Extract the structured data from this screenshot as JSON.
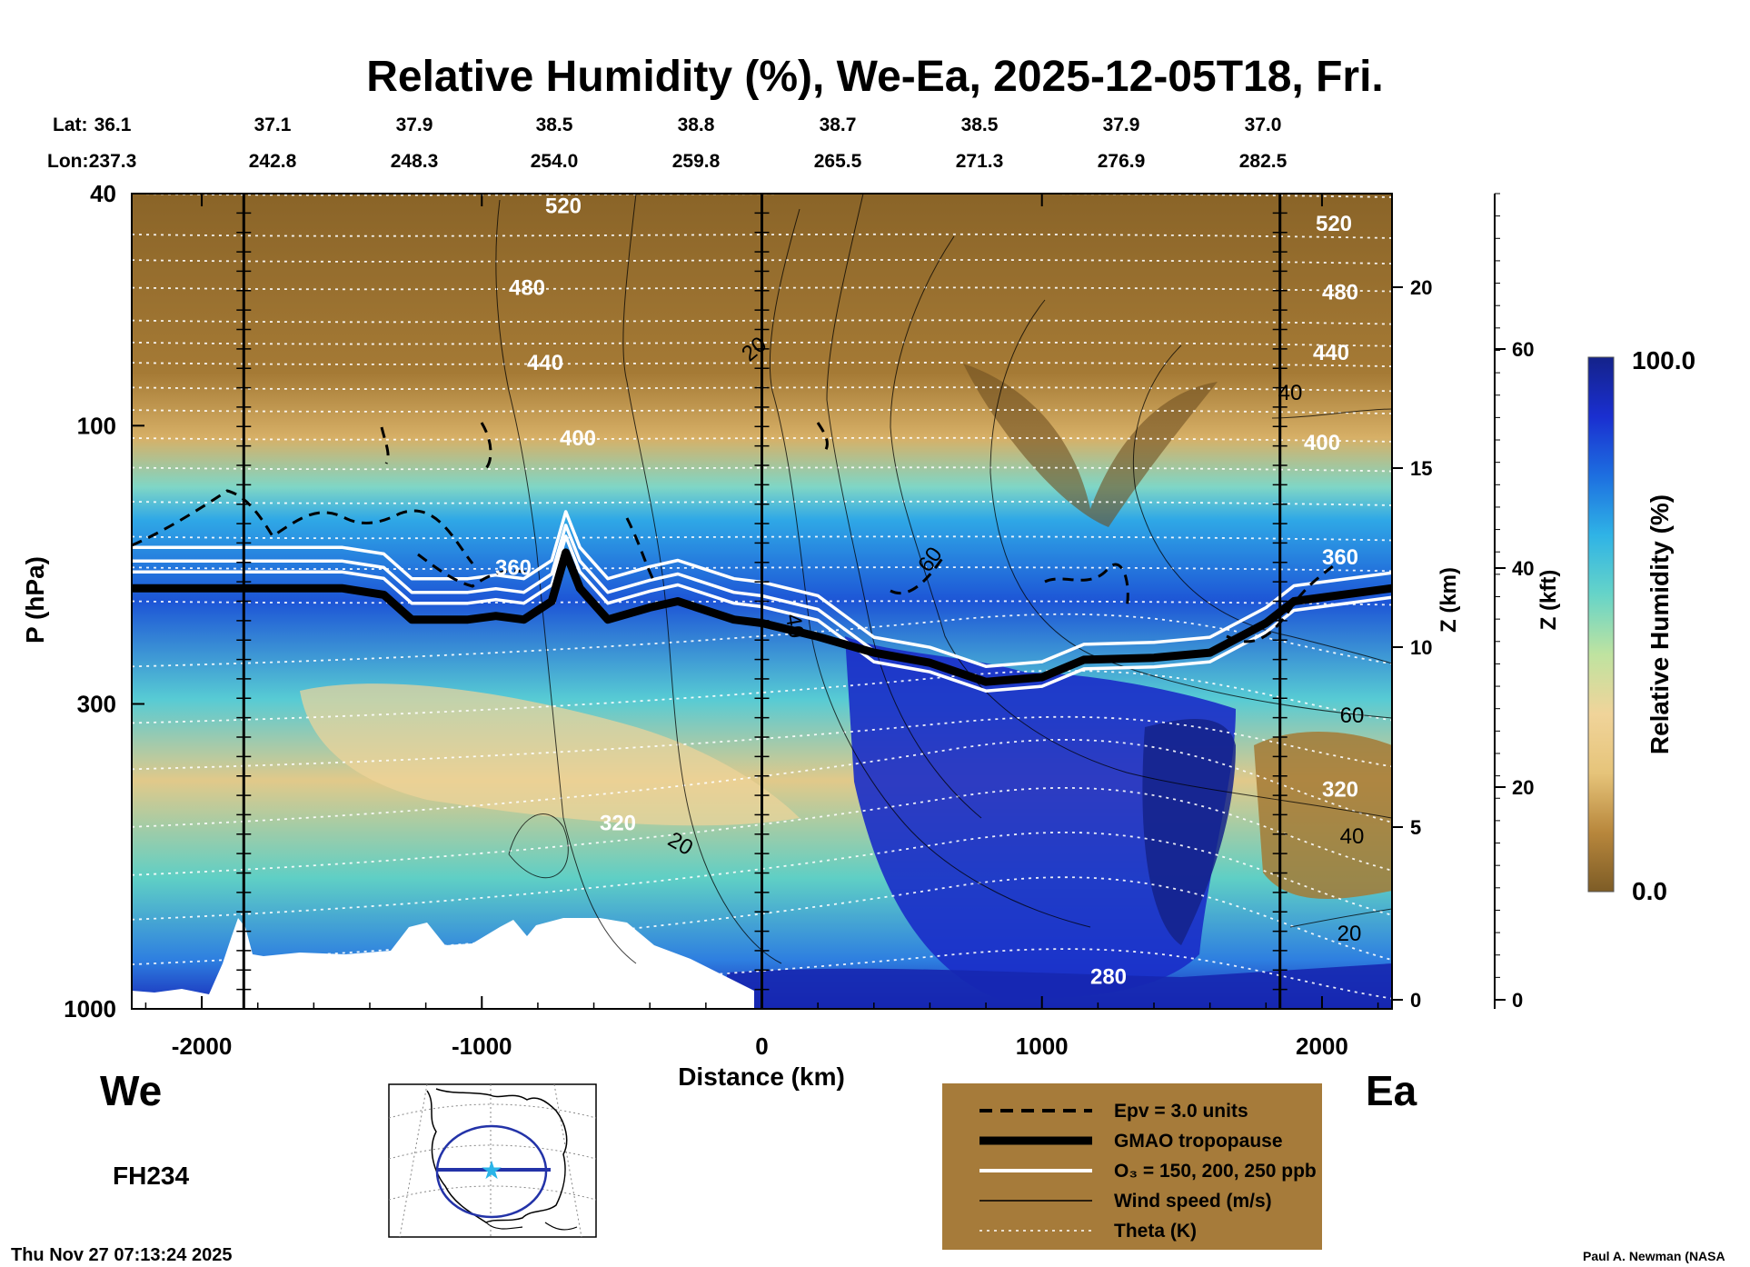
{
  "chart_data": {
    "type": "heatmap",
    "title": "Relative Humidity (%), We-Ea, 2025-12-05T18, Fri.",
    "xlabel": "Distance (km)",
    "ylabel": "P (hPa)",
    "ylabel_right_km": "Z (km)",
    "ylabel_right_kft": "Z (kft)",
    "colorbar_label": "Relative Humidity (%)",
    "colorbar_range": [
      0.0,
      100.0
    ],
    "colorbar_max_label": "100.0",
    "colorbar_min_label": "0.0",
    "colorbar_colors": [
      "#7d5c26",
      "#b8873c",
      "#e6c47a",
      "#f0d49a",
      "#bfe3a0",
      "#66d4c8",
      "#2fb3e6",
      "#1d6fe0",
      "#1a2fd0",
      "#14228a"
    ],
    "xlim": [
      -2250,
      2250
    ],
    "ylim_hpa": [
      1000,
      40
    ],
    "y_scale": "log",
    "x_ticks": [
      -2000,
      -1000,
      0,
      1000,
      2000
    ],
    "x_tick_labels": [
      "-2000",
      "-1000",
      "0",
      "1000",
      "2000"
    ],
    "y_ticks_hpa": [
      40,
      100,
      300,
      1000
    ],
    "y_tick_labels_hpa": [
      "40",
      "100",
      "300",
      "1000"
    ],
    "z_km_ticks": [
      "20",
      "15",
      "10",
      "5",
      "0"
    ],
    "z_kft_ticks": [
      "60",
      "40",
      "20",
      "0"
    ],
    "lat_label": "Lat:",
    "lon_label": "Lon:",
    "lats": [
      "36.1",
      "37.1",
      "37.9",
      "38.5",
      "38.8",
      "38.7",
      "38.5",
      "37.9",
      "37.0"
    ],
    "lons": [
      "237.3",
      "242.8",
      "248.3",
      "254.0",
      "259.8",
      "265.5",
      "271.3",
      "276.9",
      "282.5"
    ],
    "vertical_markers_km": [
      -1850,
      0,
      1850
    ],
    "tropopause": {
      "name": "GMAO tropopause",
      "x": [
        -2250,
        -1500,
        -1350,
        -1250,
        -1050,
        -950,
        -850,
        -750,
        -700,
        -650,
        -550,
        -400,
        -300,
        -100,
        0,
        200,
        400,
        600,
        800,
        1000,
        1150,
        1400,
        1600,
        1800,
        1900,
        2250
      ],
      "p": [
        190,
        190,
        195,
        215,
        215,
        212,
        215,
        200,
        165,
        190,
        215,
        205,
        200,
        215,
        218,
        230,
        245,
        255,
        275,
        270,
        252,
        250,
        245,
        218,
        200,
        190
      ]
    },
    "theta_levels": [
      {
        "label": "520",
        "p": 42
      },
      {
        "label": "480",
        "p": 58
      },
      {
        "label": "440",
        "p": 78
      },
      {
        "label": "400",
        "p": 105
      },
      {
        "label": "360",
        "p": 175
      },
      {
        "label": "320",
        "p": 430
      },
      {
        "label": "280",
        "p": 900
      }
    ],
    "wind_labels": [
      "20",
      "40",
      "60",
      "40",
      "60",
      "40",
      "20",
      "20"
    ],
    "legend": [
      {
        "style": "dashed",
        "label": "Epv = 3.0 units"
      },
      {
        "style": "thick",
        "label": "GMAO tropopause"
      },
      {
        "style": "white",
        "label": "O₃ = 150, 200, 250 ppb"
      },
      {
        "style": "thin",
        "label": "Wind speed (m/s)"
      },
      {
        "style": "dotted",
        "label": "Theta (K)"
      }
    ]
  },
  "labels": {
    "west": "We",
    "east": "Ea",
    "forecast_hour": "FH234",
    "timestamp": "Thu Nov 27 07:13:24 2025",
    "credit": "Paul A. Newman (NASA"
  }
}
